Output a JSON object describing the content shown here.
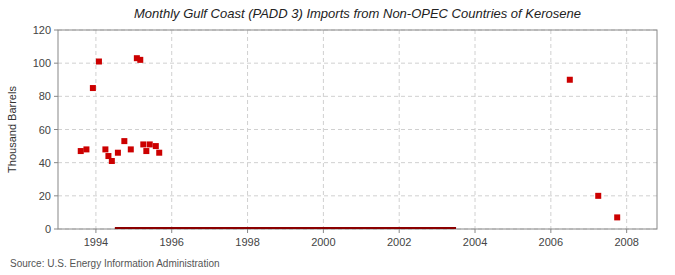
{
  "chart_data": {
    "type": "scatter",
    "title": "Monthly Gulf Coast (PADD 3) Imports from Non-OPEC Countries of Kerosene",
    "ylabel": "Thousand Barrels",
    "annotations": [
      "Source: U.S. Energy Information Administration"
    ],
    "xlim": [
      1993.0,
      2008.8
    ],
    "ylim": [
      0,
      120
    ],
    "xticks": [
      1994,
      1996,
      1998,
      2000,
      2002,
      2004,
      2006,
      2008
    ],
    "yticks": [
      0,
      20,
      40,
      60,
      80,
      100,
      120
    ],
    "grid": true,
    "series": [
      {
        "type": "scatter",
        "color": "#cc0000",
        "marker": "square",
        "x": [
          1993.6,
          1993.75,
          1993.92,
          1994.08,
          1994.25,
          1994.33,
          1994.42,
          1994.58,
          1994.75,
          1994.92,
          1995.08,
          1995.17,
          1995.25,
          1995.33,
          1995.42,
          1995.58,
          1995.67,
          2006.5,
          2007.25,
          2007.75
        ],
        "values": [
          47,
          48,
          85,
          101,
          48,
          44,
          41,
          46,
          53,
          48,
          103,
          102,
          51,
          47,
          51,
          50,
          46,
          90,
          20,
          7
        ]
      },
      {
        "type": "line",
        "color": "#8b0000",
        "line_style": "solid",
        "x": [
          1994.5,
          2003.5
        ],
        "values": [
          0,
          0
        ]
      }
    ]
  }
}
